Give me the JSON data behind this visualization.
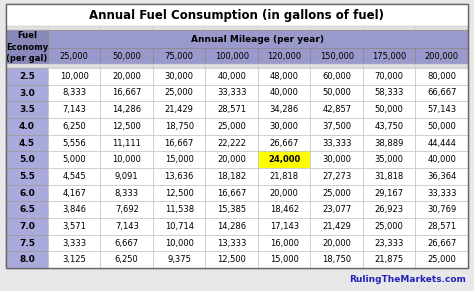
{
  "title": "Annual Fuel Consumption (in gallons of fuel)",
  "col_header_label": "Annual Mileage (per year)",
  "row_header_label_lines": [
    "Fuel",
    "Economy",
    "(per gal)"
  ],
  "mileages": [
    "25,000",
    "50,000",
    "75,000",
    "100,000",
    "120,000",
    "150,000",
    "175,000",
    "200,000"
  ],
  "fuel_economies": [
    "2.5",
    "3.0",
    "3.5",
    "4.0",
    "4.5",
    "5.0",
    "5.5",
    "6.0",
    "6.5",
    "7.0",
    "7.5",
    "8.0"
  ],
  "table_data": [
    [
      "10,000",
      "20,000",
      "30,000",
      "40,000",
      "48,000",
      "60,000",
      "70,000",
      "80,000"
    ],
    [
      "8,333",
      "16,667",
      "25,000",
      "33,333",
      "40,000",
      "50,000",
      "58,333",
      "66,667"
    ],
    [
      "7,143",
      "14,286",
      "21,429",
      "28,571",
      "34,286",
      "42,857",
      "50,000",
      "57,143"
    ],
    [
      "6,250",
      "12,500",
      "18,750",
      "25,000",
      "30,000",
      "37,500",
      "43,750",
      "50,000"
    ],
    [
      "5,556",
      "11,111",
      "16,667",
      "22,222",
      "26,667",
      "33,333",
      "38,889",
      "44,444"
    ],
    [
      "5,000",
      "10,000",
      "15,000",
      "20,000",
      "24,000",
      "30,000",
      "35,000",
      "40,000"
    ],
    [
      "4,545",
      "9,091",
      "13,636",
      "18,182",
      "21,818",
      "27,273",
      "31,818",
      "36,364"
    ],
    [
      "4,167",
      "8,333",
      "12,500",
      "16,667",
      "20,000",
      "25,000",
      "29,167",
      "33,333"
    ],
    [
      "3,846",
      "7,692",
      "11,538",
      "15,385",
      "18,462",
      "23,077",
      "26,923",
      "30,769"
    ],
    [
      "3,571",
      "7,143",
      "10,714",
      "14,286",
      "17,143",
      "21,429",
      "25,000",
      "28,571"
    ],
    [
      "3,333",
      "6,667",
      "10,000",
      "13,333",
      "16,000",
      "20,000",
      "23,333",
      "26,667"
    ],
    [
      "3,125",
      "6,250",
      "9,375",
      "12,500",
      "15,000",
      "18,750",
      "21,875",
      "25,000"
    ]
  ],
  "highlight_cell_row": 5,
  "highlight_cell_col": 4,
  "highlight_color": "#FFFF00",
  "header_bg_color": "#9999CC",
  "row_header_bg_color": "#8888BB",
  "data_row_header_color": "#AAAADD",
  "title_bg_color": "#FFFFFF",
  "cell_edge_color": "#BBBBBB",
  "watermark_text": "RulingTheMarkets.com",
  "watermark_color": "#2222BB",
  "font_size_title": 8.5,
  "font_size_header": 6.5,
  "font_size_mileage": 6.0,
  "font_size_data": 6.0,
  "font_size_watermark": 6.5,
  "bg_color": "#E8E8E8",
  "outer_thin_row_color": "#CCCCCC",
  "spacer_color": "#E0E0E0"
}
